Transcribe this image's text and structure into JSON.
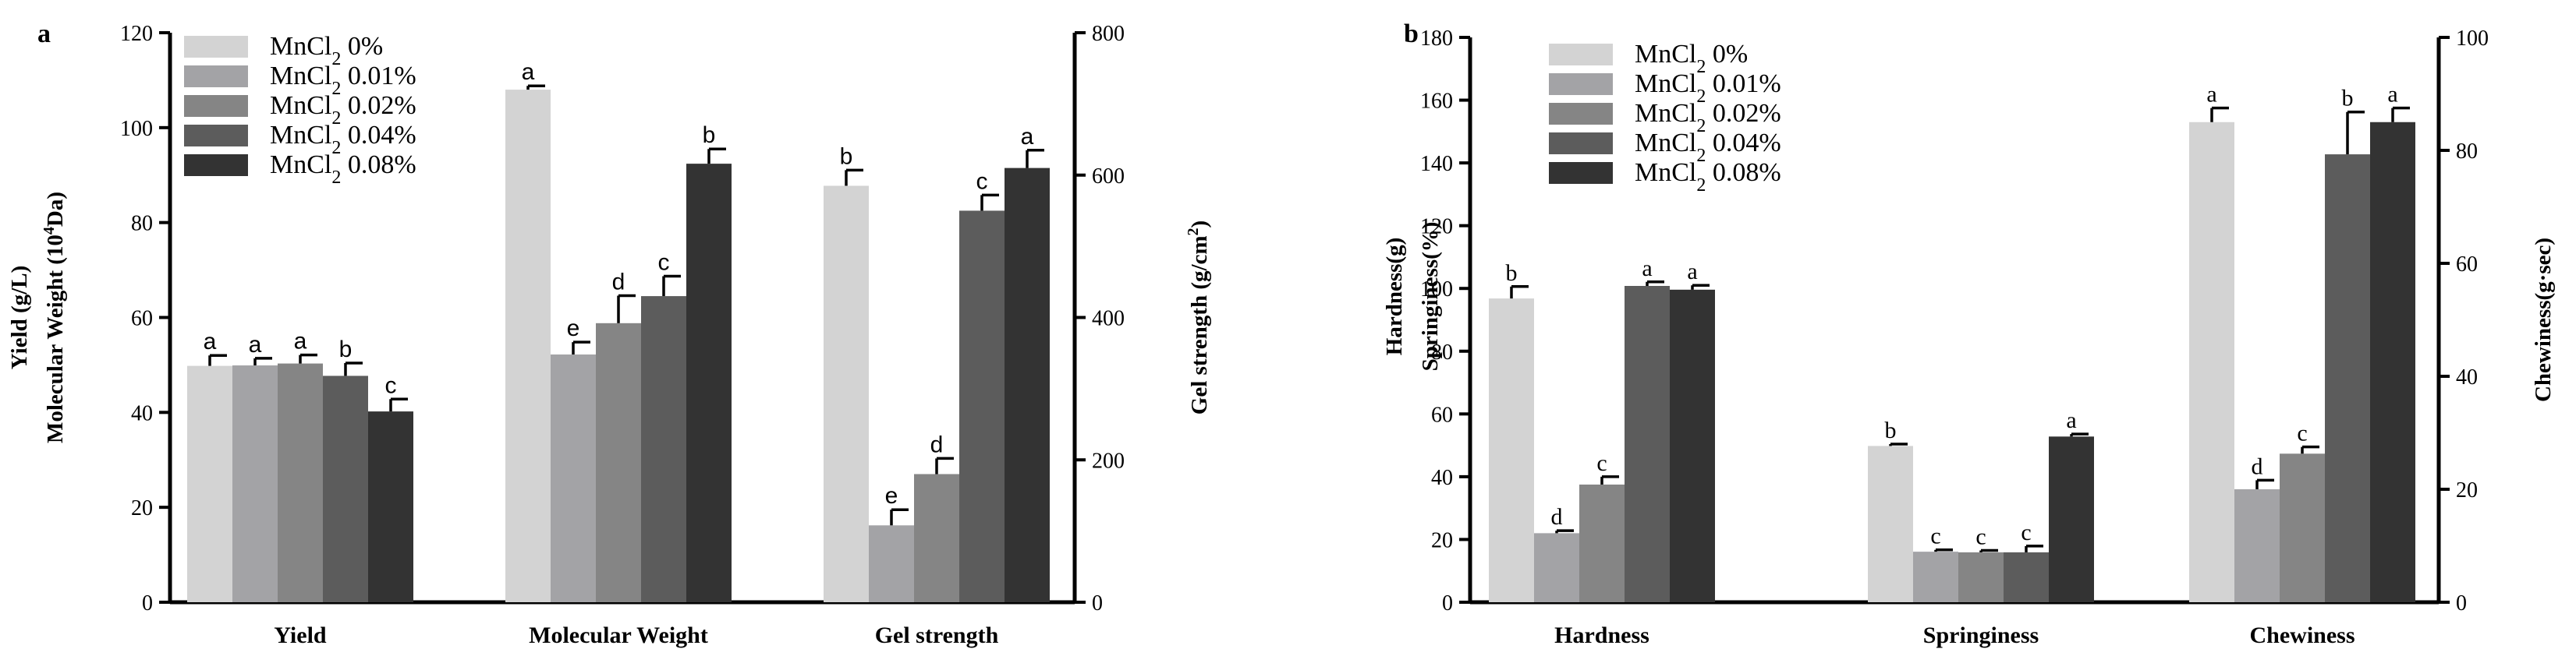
{
  "colors": [
    "#d3d3d3",
    "#a3a3a6",
    "#858585",
    "#5c5c5c",
    "#333333"
  ],
  "legend": [
    {
      "prefix": "MnCl",
      "sub": "2",
      "suffix": " 0%"
    },
    {
      "prefix": "MnCl",
      "sub": "2",
      "suffix": " 0.01%"
    },
    {
      "prefix": "MnCl",
      "sub": "2",
      "suffix": " 0.02%"
    },
    {
      "prefix": "MnCl",
      "sub": "2",
      "suffix": " 0.04%"
    },
    {
      "prefix": "MnCl",
      "sub": "2",
      "suffix": " 0.08%"
    }
  ],
  "chart_data": [
    {
      "panel": "a",
      "type": "bar",
      "left_axis": {
        "title_line1": "Yield (g/L)",
        "title_line2_pre": "Molecular Weight (10",
        "title_line2_sup": "4",
        "title_line2_post": "Da)",
        "ylim": [
          0,
          120
        ],
        "ticks": [
          0,
          20,
          40,
          60,
          80,
          100,
          120
        ]
      },
      "right_axis": {
        "title_pre": "Gel strength (g/cm",
        "title_sup": "2",
        "title_post": ")",
        "ylim": [
          0,
          800
        ],
        "ticks": [
          0,
          200,
          400,
          600,
          800
        ]
      },
      "groups": [
        {
          "label": "Yield",
          "axis": "left",
          "values": [
            49.8,
            49.9,
            50.3,
            47.7,
            40.2
          ],
          "errors": [
            2.2,
            1.5,
            1.8,
            2.7,
            2.6
          ],
          "letters": [
            "a",
            "a",
            "a",
            "b",
            "c"
          ]
        },
        {
          "label": "Molecular Weight",
          "axis": "left",
          "values": [
            108.0,
            52.2,
            58.8,
            64.5,
            92.4
          ],
          "errors": [
            0.8,
            2.6,
            5.8,
            4.2,
            3.1
          ],
          "letters": [
            "a",
            "e",
            "d",
            "c",
            "b"
          ]
        },
        {
          "label": "Gel strength",
          "axis": "right",
          "values": [
            585,
            108,
            180,
            550,
            610
          ],
          "errors": [
            22,
            22,
            22,
            22,
            25
          ],
          "letters": [
            "b",
            "e",
            "d",
            "c",
            "a"
          ]
        }
      ]
    },
    {
      "panel": "b",
      "type": "bar",
      "left_axis": {
        "title_line1": "Hardness(g)",
        "title_line2": "Springiness(%)",
        "ylim": [
          0,
          180
        ],
        "ticks": [
          0,
          20,
          40,
          60,
          80,
          100,
          120,
          140,
          160,
          180
        ]
      },
      "right_axis": {
        "title": "Chewiness(g·sec)",
        "ylim": [
          0,
          100
        ],
        "ticks": [
          0,
          20,
          40,
          60,
          80,
          100
        ]
      },
      "groups": [
        {
          "label": "Hardness",
          "axis": "left",
          "values": [
            96.8,
            22.0,
            37.5,
            100.8,
            99.6
          ],
          "errors": [
            3.8,
            0.8,
            2.5,
            1.3,
            1.4
          ],
          "letters": [
            "b",
            "d",
            "c",
            "a",
            "a"
          ]
        },
        {
          "label": "Springiness",
          "axis": "left",
          "values": [
            49.8,
            16.1,
            15.9,
            15.9,
            52.8
          ],
          "errors": [
            0.6,
            0.6,
            0.6,
            2.0,
            0.8
          ],
          "letters": [
            "b",
            "c",
            "c",
            "c",
            "a"
          ]
        },
        {
          "label": "Chewiness",
          "axis": "right",
          "values": [
            85.0,
            20.0,
            26.3,
            79.3,
            85.0
          ],
          "errors": [
            2.5,
            1.6,
            1.2,
            7.5,
            2.5
          ],
          "letters": [
            "a",
            "d",
            "c",
            "b",
            "a"
          ]
        }
      ]
    }
  ]
}
